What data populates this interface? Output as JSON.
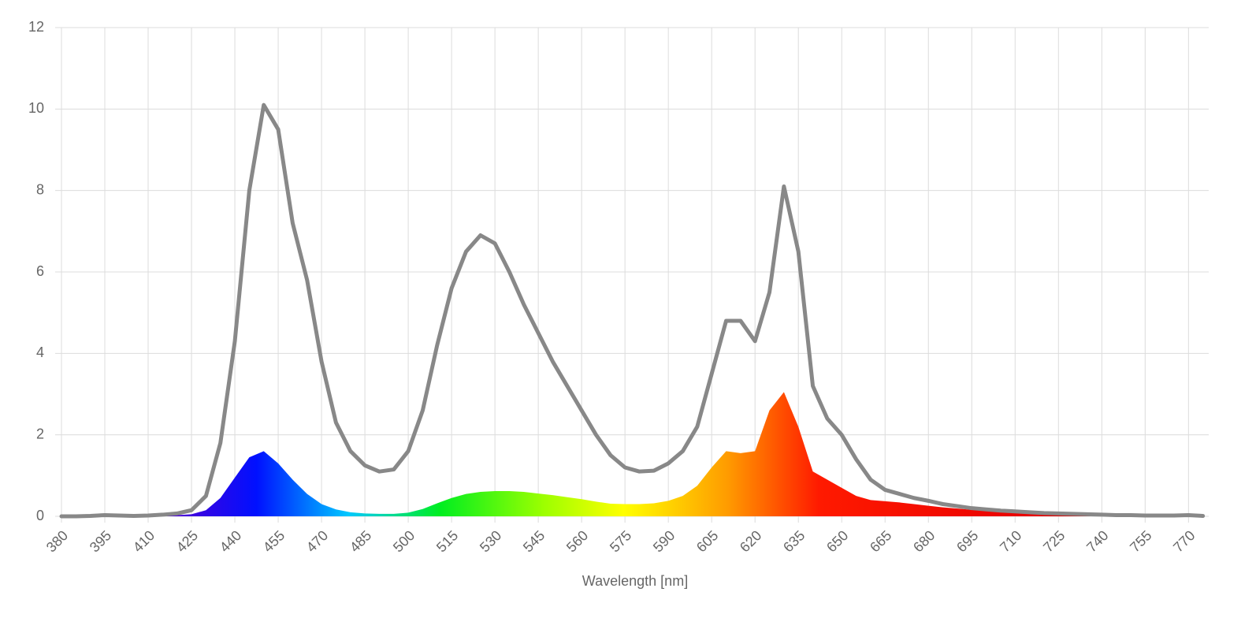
{
  "chart_data": {
    "type": "line",
    "xlabel": "Wavelength [nm]",
    "x": [
      380,
      385,
      390,
      395,
      400,
      405,
      410,
      415,
      420,
      425,
      430,
      435,
      440,
      445,
      450,
      455,
      460,
      465,
      470,
      475,
      480,
      485,
      490,
      495,
      500,
      505,
      510,
      515,
      520,
      525,
      530,
      535,
      540,
      545,
      550,
      555,
      560,
      565,
      570,
      575,
      580,
      585,
      590,
      595,
      600,
      605,
      610,
      615,
      620,
      625,
      630,
      635,
      640,
      645,
      650,
      655,
      660,
      665,
      670,
      675,
      680,
      685,
      690,
      695,
      700,
      705,
      710,
      715,
      720,
      725,
      730,
      735,
      740,
      745,
      750,
      755,
      760,
      765,
      770,
      775
    ],
    "series": [
      {
        "type": "line",
        "color": "#888888",
        "values": [
          0,
          0,
          0.01,
          0.03,
          0.02,
          0.01,
          0.02,
          0.04,
          0.07,
          0.15,
          0.5,
          1.8,
          4.3,
          8.0,
          10.1,
          9.5,
          7.2,
          5.8,
          3.8,
          2.3,
          1.6,
          1.25,
          1.1,
          1.15,
          1.6,
          2.6,
          4.2,
          5.6,
          6.5,
          6.9,
          6.7,
          6.0,
          5.2,
          4.5,
          3.8,
          3.2,
          2.6,
          2.0,
          1.5,
          1.2,
          1.1,
          1.12,
          1.3,
          1.6,
          2.2,
          3.5,
          4.8,
          4.8,
          4.3,
          5.5,
          8.1,
          6.5,
          3.2,
          2.4,
          2.0,
          1.4,
          0.9,
          0.65,
          0.55,
          0.45,
          0.38,
          0.3,
          0.25,
          0.2,
          0.17,
          0.14,
          0.12,
          0.1,
          0.08,
          0.07,
          0.06,
          0.05,
          0.04,
          0.03,
          0.03,
          0.02,
          0.02,
          0.02,
          0.03,
          0.01
        ]
      },
      {
        "type": "area",
        "values": [
          0,
          0,
          0.01,
          0.01,
          0.01,
          0.01,
          0.01,
          0.02,
          0.03,
          0.05,
          0.15,
          0.45,
          0.95,
          1.45,
          1.6,
          1.3,
          0.9,
          0.55,
          0.3,
          0.17,
          0.1,
          0.07,
          0.06,
          0.06,
          0.09,
          0.18,
          0.32,
          0.45,
          0.55,
          0.6,
          0.62,
          0.62,
          0.6,
          0.56,
          0.52,
          0.47,
          0.42,
          0.36,
          0.31,
          0.3,
          0.3,
          0.32,
          0.38,
          0.5,
          0.75,
          1.2,
          1.6,
          1.55,
          1.6,
          2.6,
          3.05,
          2.2,
          1.1,
          0.9,
          0.7,
          0.5,
          0.4,
          0.37,
          0.34,
          0.3,
          0.26,
          0.22,
          0.19,
          0.16,
          0.13,
          0.11,
          0.09,
          0.07,
          0.06,
          0.05,
          0.04,
          0.04,
          0.03,
          0.03,
          0.02,
          0.02,
          0.02,
          0.02,
          0.02,
          0.01
        ]
      }
    ],
    "xlim": [
      380,
      777
    ],
    "xticks": [
      380,
      395,
      410,
      425,
      440,
      455,
      470,
      485,
      500,
      515,
      530,
      545,
      560,
      575,
      590,
      605,
      620,
      635,
      650,
      665,
      680,
      695,
      710,
      725,
      740,
      755,
      770
    ],
    "ylim": [
      0,
      12
    ],
    "yticks": [
      0,
      2,
      4,
      6,
      8,
      10,
      12
    ],
    "grid": true
  }
}
